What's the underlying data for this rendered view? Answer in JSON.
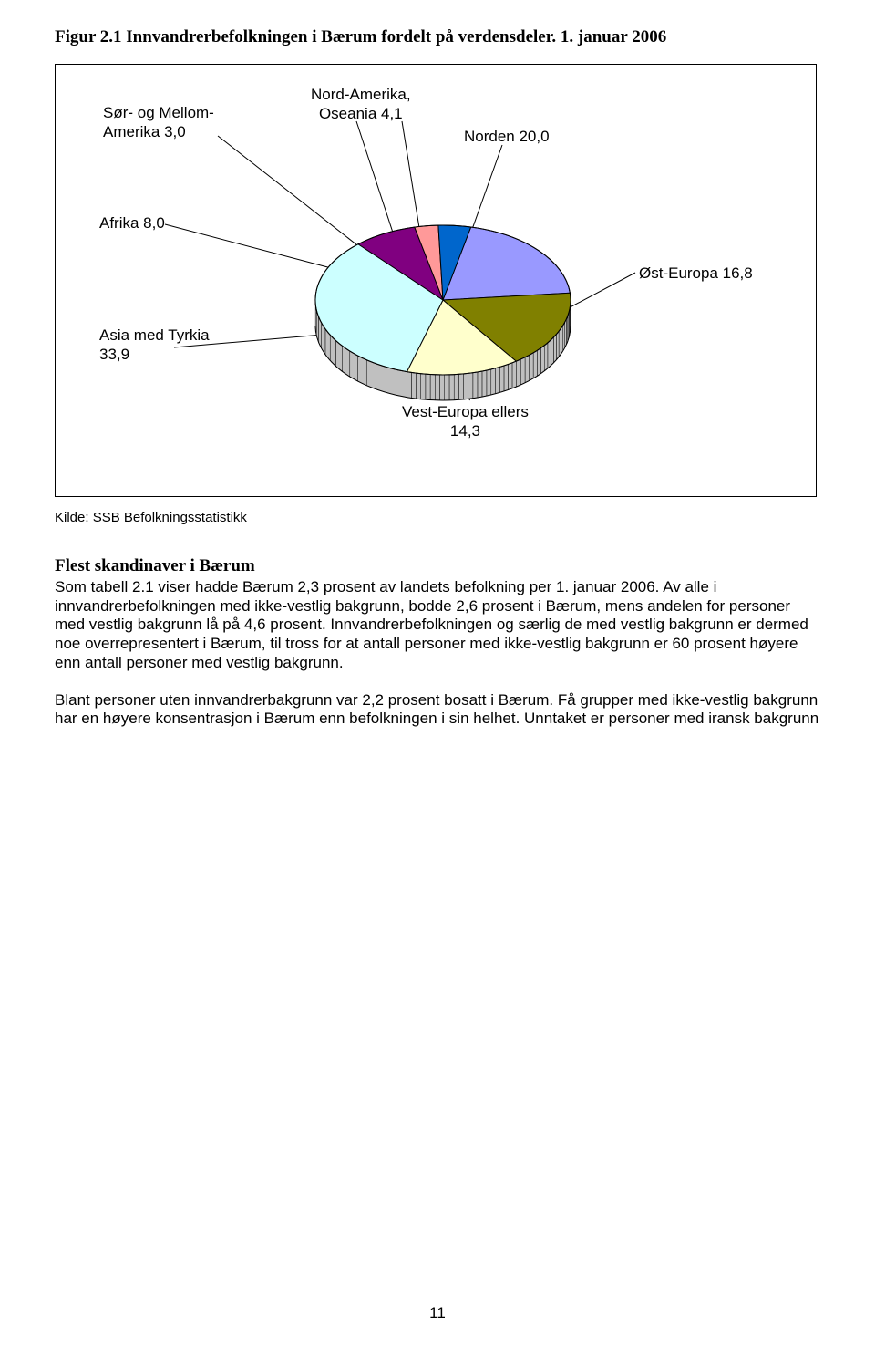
{
  "page": {
    "title": "Figur 2.1 Innvandrerbefolkningen i Bærum fordelt på verdensdeler. 1. januar 2006",
    "source": "Kilde: SSB Befolkningsstatistikk",
    "subhead": "Flest skandinaver i Bærum",
    "para1": "Som tabell 2.1 viser hadde Bærum 2,3 prosent av landets befolkning per 1. januar 2006. Av alle i innvandrerbefolkningen med ikke-vestlig bakgrunn, bodde 2,6 prosent i Bærum, mens andelen for personer med vestlig bakgrunn lå på 4,6 prosent. Innvandrerbefolkningen og særlig de med vestlig bakgrunn er dermed noe overrepresentert i Bærum, til tross for at antall personer med ikke-vestlig bakgrunn er 60 prosent høyere enn antall personer med vestlig bakgrunn.",
    "para2": "Blant personer uten innvandrerbakgrunn var 2,2 prosent bosatt i Bærum. Få grupper med ikke-vestlig bakgrunn har en høyere konsentrasjon i Bærum enn befolkningen i sin helhet. Unntaket er personer med iransk bakgrunn",
    "page_number": "11"
  },
  "chart": {
    "type": "pie-3d",
    "slices": [
      {
        "label_line1": "Norden 20,0",
        "value": 20.0,
        "color": "#9999ff"
      },
      {
        "label_line1": "Øst-Europa 16,8",
        "value": 16.8,
        "color": "#808000"
      },
      {
        "label_line1": "Vest-Europa ellers",
        "label_line2": "14,3",
        "value": 14.3,
        "color": "#ffffcc"
      },
      {
        "label_line1": "Asia med Tyrkia",
        "label_line2": "33,9",
        "value": 33.9,
        "color": "#ccffff"
      },
      {
        "label_line1": "Afrika 8,0",
        "value": 8.0,
        "color": "#800080"
      },
      {
        "label_line1": "Sør- og Mellom-",
        "label_line2": "Amerika 3,0",
        "value": 3.0,
        "color": "#ff9999"
      },
      {
        "label_line1": "Nord-Amerika,",
        "label_line2": "Oseania 4,1",
        "value": 4.1,
        "color": "#0066cc"
      }
    ],
    "edge_color": "#000000",
    "side_color": "#c0c0c0",
    "background": "#ffffff",
    "label_fontsize": 17,
    "thickness": 28
  }
}
